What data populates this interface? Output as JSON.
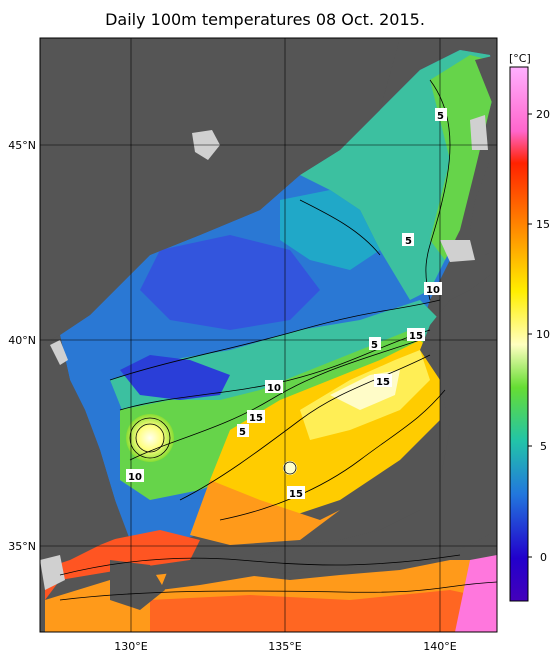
{
  "title": "Daily 100m temperatures 08 Oct. 2015.",
  "colorbar": {
    "unit": "[°C]",
    "ticks": [
      "20",
      "15",
      "10",
      "5",
      "0"
    ],
    "colors": [
      "#ff66ff",
      "#ff2b00",
      "#ff8c00",
      "#ffe600",
      "#ffffb0",
      "#55dd33",
      "#20c0b0",
      "#1e63d0",
      "#3300dd"
    ]
  },
  "axes": {
    "lat_labels": [
      "45°N",
      "40°N",
      "35°N"
    ],
    "lon_labels": [
      "130°E",
      "135°E",
      "140°E"
    ]
  },
  "contour_labels": [
    "5",
    "5",
    "10",
    "5",
    "15",
    "15",
    "10",
    "15",
    "5",
    "10",
    "15"
  ],
  "colors": {
    "land": "#555555",
    "no_data": "#d0d0d0",
    "frame": "#000000"
  }
}
